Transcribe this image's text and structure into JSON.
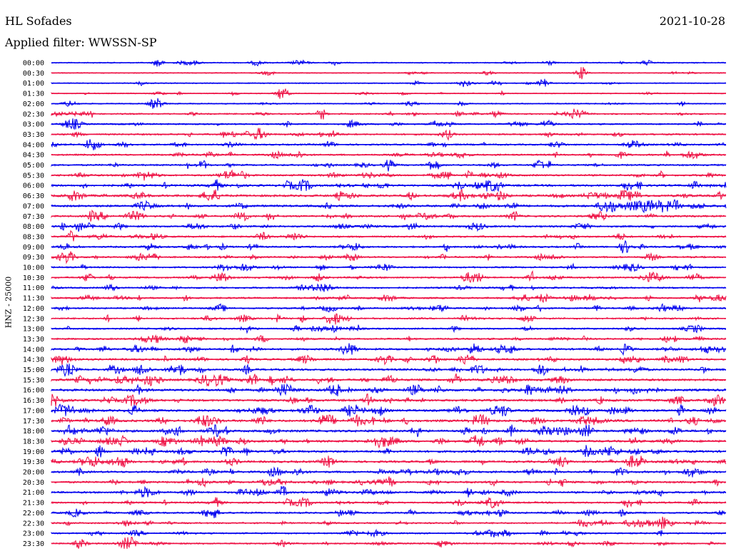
{
  "header": {
    "station": "HL Sofades",
    "date": "2021-10-28",
    "filter": "Applied filter: WWSSN-SP"
  },
  "chart_data": {
    "type": "line",
    "title": "HL Sofades",
    "subtitle": "Applied filter: WWSSN-SP",
    "ylabel": "HNZ - 25000",
    "rows": [
      "00:00",
      "00:30",
      "01:00",
      "01:30",
      "02:00",
      "02:30",
      "03:00",
      "03:30",
      "04:00",
      "04:30",
      "05:00",
      "05:30",
      "06:00",
      "06:30",
      "07:00",
      "07:30",
      "08:00",
      "08:30",
      "09:00",
      "09:30",
      "10:00",
      "10:30",
      "11:00",
      "11:30",
      "12:00",
      "12:30",
      "13:00",
      "13:30",
      "14:00",
      "14:30",
      "15:00",
      "15:30",
      "16:00",
      "16:30",
      "17:00",
      "17:30",
      "18:00",
      "18:30",
      "19:00",
      "19:30",
      "20:00",
      "20:30",
      "21:00",
      "21:30",
      "22:00",
      "22:30",
      "23:00",
      "23:30"
    ],
    "colors": [
      "#0000ee",
      "#ee1144"
    ],
    "activity": [
      0.15,
      0.1,
      0.12,
      0.08,
      0.15,
      0.3,
      0.35,
      0.4,
      0.4,
      0.45,
      0.45,
      0.5,
      0.65,
      0.7,
      0.7,
      0.55,
      0.5,
      0.45,
      0.45,
      0.45,
      0.4,
      0.45,
      0.4,
      0.45,
      0.4,
      0.4,
      0.4,
      0.45,
      0.6,
      0.55,
      0.65,
      0.7,
      0.8,
      0.7,
      0.75,
      0.8,
      0.75,
      0.7,
      0.7,
      0.65,
      0.65,
      0.6,
      0.55,
      0.45,
      0.45,
      0.4,
      0.35,
      0.35
    ],
    "grid": false
  }
}
